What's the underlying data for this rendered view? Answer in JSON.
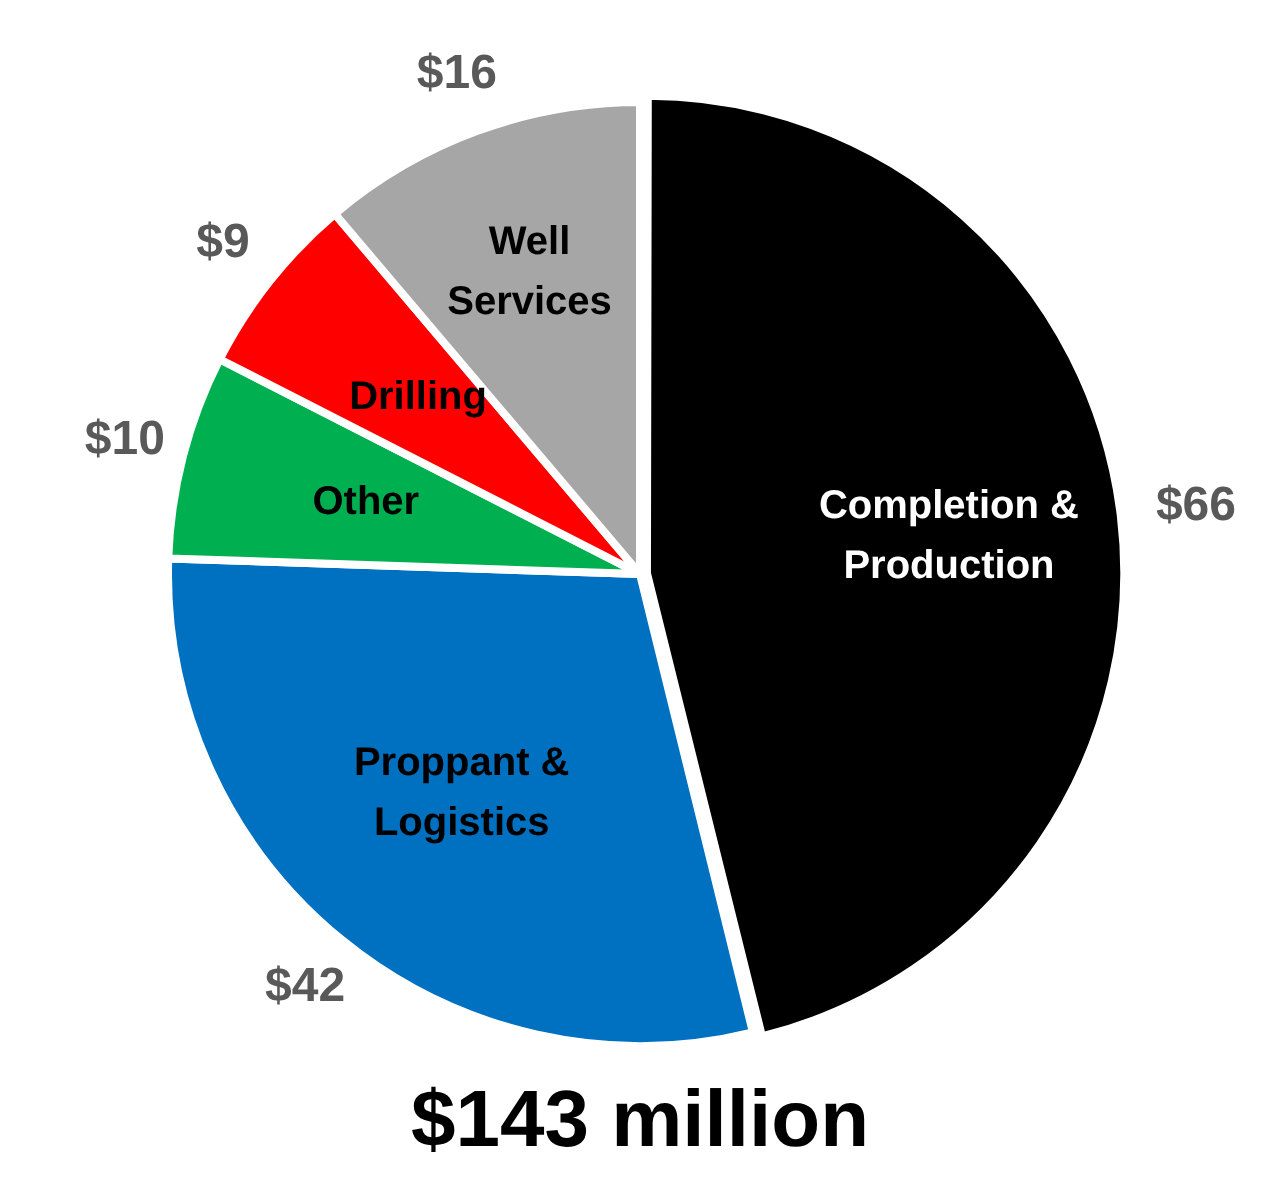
{
  "chart_data": {
    "type": "pie",
    "title": "$143 million",
    "categories": [
      "Completion & Production",
      "Proppant & Logistics",
      "Other",
      "Drilling",
      "Well Services"
    ],
    "values": [
      66,
      42,
      10,
      9,
      16
    ],
    "value_labels": [
      "$66",
      "$42",
      "$10",
      "$9",
      "$16"
    ],
    "colors": [
      "#000000",
      "#0070c0",
      "#00b050",
      "#ff0000",
      "#a6a6a6"
    ],
    "legend": false
  }
}
